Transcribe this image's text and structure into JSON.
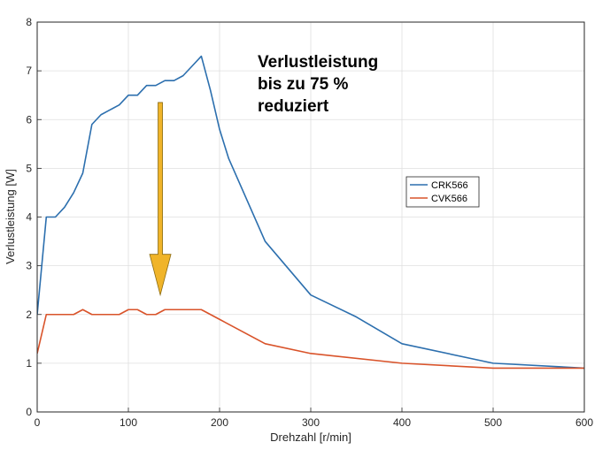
{
  "chart_data": {
    "type": "line",
    "title": "",
    "xlabel": "Drehzahl [r/min]",
    "ylabel": "Verlustleistung [W]",
    "xlim": [
      0,
      600
    ],
    "ylim": [
      0,
      8
    ],
    "xticks": [
      0,
      100,
      200,
      300,
      400,
      500,
      600
    ],
    "yticks": [
      0,
      1,
      2,
      3,
      4,
      5,
      6,
      7,
      8
    ],
    "grid": true,
    "legend_position": "right",
    "annotation": {
      "lines": [
        "Verlustleistung",
        "bis zu 75 %",
        "reduziert"
      ],
      "arrow": {
        "x": 135,
        "y_from": 6.35,
        "y_to": 2.4,
        "color": "#F0B429"
      }
    },
    "series": [
      {
        "name": "CRK566",
        "color": "#2C6FAE",
        "x": [
          0,
          10,
          20,
          30,
          40,
          50,
          60,
          70,
          80,
          90,
          100,
          110,
          120,
          130,
          140,
          150,
          160,
          170,
          180,
          190,
          200,
          210,
          250,
          300,
          350,
          400,
          500,
          600
        ],
        "y": [
          2.0,
          4.0,
          4.0,
          4.2,
          4.5,
          4.9,
          5.9,
          6.1,
          6.2,
          6.3,
          6.5,
          6.5,
          6.7,
          6.7,
          6.8,
          6.8,
          6.9,
          7.1,
          7.3,
          6.6,
          5.8,
          5.2,
          3.5,
          2.4,
          1.95,
          1.4,
          1.0,
          0.9
        ]
      },
      {
        "name": "CVK566",
        "color": "#D9532A",
        "x": [
          0,
          10,
          20,
          30,
          40,
          50,
          60,
          70,
          80,
          90,
          100,
          110,
          120,
          130,
          140,
          150,
          160,
          170,
          180,
          200,
          250,
          300,
          400,
          500,
          600
        ],
        "y": [
          1.2,
          2.0,
          2.0,
          2.0,
          2.0,
          2.1,
          2.0,
          2.0,
          2.0,
          2.0,
          2.1,
          2.1,
          2.0,
          2.0,
          2.1,
          2.1,
          2.1,
          2.1,
          2.1,
          1.9,
          1.4,
          1.2,
          1.0,
          0.9,
          0.9
        ]
      }
    ]
  }
}
